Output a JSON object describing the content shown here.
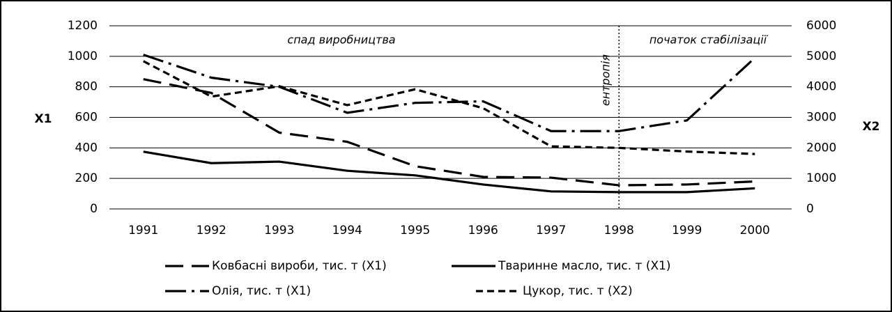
{
  "chart_data": {
    "type": "line",
    "y_label": "X1",
    "y2_label": "X2",
    "categories": [
      "1991",
      "1992",
      "1993",
      "1994",
      "1995",
      "1996",
      "1997",
      "1998",
      "1999",
      "2000"
    ],
    "series": [
      {
        "name": "Ковбасні вироби, тис. т (X1)",
        "color": "#000000",
        "dash": "26,12",
        "values": [
          850,
          760,
          500,
          440,
          280,
          210,
          205,
          155,
          160,
          180
        ]
      },
      {
        "name": "Тваринне масло, тис. т (X1)",
        "color": "#000000",
        "dash": "none",
        "values": [
          375,
          300,
          310,
          250,
          220,
          160,
          115,
          110,
          110,
          135
        ]
      },
      {
        "name": "Олія, тис. т (X1)",
        "color": "#000000",
        "dash": "30,8,4,8",
        "values": [
          1010,
          860,
          800,
          630,
          695,
          705,
          510,
          510,
          580,
          990
        ]
      },
      {
        "name": "Цукор, тис. т (X2)",
        "color": "#000000",
        "dash": "10,6",
        "axis": "y2",
        "values": [
          4840,
          3680,
          4020,
          3400,
          3920,
          3300,
          2050,
          2000,
          1880,
          1800
        ]
      }
    ],
    "ylim": [
      0,
      1200
    ],
    "yticks": [
      0,
      200,
      400,
      600,
      800,
      1000,
      1200
    ],
    "y2lim": [
      0,
      6000
    ],
    "y2ticks": [
      0,
      1000,
      2000,
      3000,
      4000,
      5000,
      6000
    ],
    "grid": true,
    "annotations": [
      "спад виробництва",
      "ентропія",
      "початок стабілізації"
    ]
  }
}
